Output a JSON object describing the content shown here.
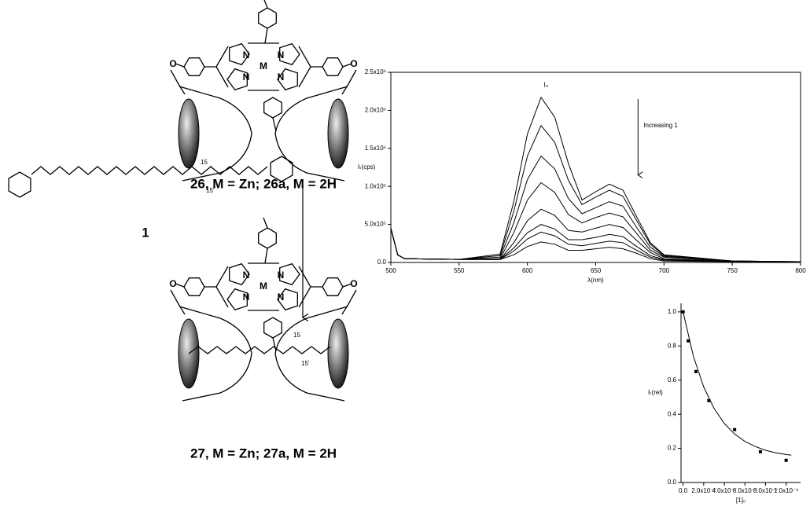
{
  "structures": {
    "top": {
      "caption": "26, M = Zn; 26a, M = 2H",
      "atoms": [
        "O",
        "N",
        "N",
        "M",
        "N",
        "N",
        "O"
      ]
    },
    "carotenoid": {
      "label": "1",
      "locants": [
        "15",
        "15'"
      ]
    },
    "bottom": {
      "caption": "27, M = Zn; 27a, M = 2H",
      "atoms": [
        "O",
        "N",
        "N",
        "M",
        "N",
        "N",
        "O"
      ],
      "locants": [
        "15",
        "15'"
      ]
    }
  },
  "chart_data": [
    {
      "type": "line",
      "x_label": "λ(nm)",
      "y_label": "Iₜ(cps)",
      "annotations": [
        "I₀",
        "Increasing 1"
      ],
      "x": [
        500,
        505,
        510,
        550,
        580,
        590,
        600,
        610,
        620,
        630,
        640,
        650,
        660,
        670,
        680,
        690,
        700,
        750,
        800
      ],
      "xlim": [
        500,
        800
      ],
      "xticks": [
        500,
        550,
        600,
        650,
        700,
        750,
        800
      ],
      "ylim": [
        0,
        2500000
      ],
      "yticks": [
        {
          "value": 0,
          "label": "0.0"
        },
        {
          "value": 500000,
          "label": "5.0x10⁵"
        },
        {
          "value": 1000000,
          "label": "1.0x10⁶"
        },
        {
          "value": 1500000,
          "label": "1.5x10⁶"
        },
        {
          "value": 2000000,
          "label": "2.0x10⁶"
        },
        {
          "value": 2500000,
          "label": "2.5x10⁶"
        }
      ],
      "series": [
        {
          "color": "#000000",
          "values": [
            450000,
            100000,
            50000,
            40000,
            110000,
            800000,
            1690000,
            2170000,
            1910000,
            1300000,
            820000,
            930000,
            1030000,
            950000,
            600000,
            260000,
            100000,
            20000,
            10000
          ]
        },
        {
          "color": "#000000",
          "values": [
            450000,
            100000,
            50000,
            40000,
            90000,
            670000,
            1400000,
            1800000,
            1580000,
            1080000,
            760000,
            860000,
            950000,
            870000,
            550000,
            240000,
            90000,
            20000,
            10000
          ]
        },
        {
          "color": "#000000",
          "values": [
            450000,
            100000,
            50000,
            40000,
            70000,
            520000,
            1090000,
            1400000,
            1230000,
            840000,
            640000,
            720000,
            800000,
            740000,
            460000,
            200000,
            80000,
            20000,
            10000
          ]
        },
        {
          "color": "#000000",
          "values": [
            450000,
            100000,
            50000,
            40000,
            50000,
            390000,
            820000,
            1050000,
            920000,
            630000,
            520000,
            590000,
            650000,
            600000,
            380000,
            160000,
            70000,
            10000,
            10000
          ]
        },
        {
          "color": "#000000",
          "values": [
            450000,
            100000,
            50000,
            40000,
            40000,
            260000,
            550000,
            700000,
            620000,
            420000,
            400000,
            450000,
            500000,
            460000,
            290000,
            130000,
            50000,
            10000,
            10000
          ]
        },
        {
          "color": "#000000",
          "values": [
            450000,
            100000,
            50000,
            40000,
            40000,
            190000,
            390000,
            500000,
            440000,
            300000,
            300000,
            330000,
            370000,
            340000,
            210000,
            90000,
            40000,
            10000,
            10000
          ]
        },
        {
          "color": "#000000",
          "values": [
            450000,
            100000,
            50000,
            40000,
            40000,
            150000,
            310000,
            400000,
            350000,
            240000,
            220000,
            250000,
            280000,
            260000,
            160000,
            70000,
            30000,
            10000,
            10000
          ]
        },
        {
          "color": "#000000",
          "values": [
            450000,
            100000,
            50000,
            40000,
            40000,
            100000,
            210000,
            270000,
            240000,
            160000,
            160000,
            180000,
            200000,
            180000,
            120000,
            50000,
            20000,
            10000,
            10000
          ]
        }
      ]
    },
    {
      "type": "scatter",
      "x_label": "[1]₀",
      "y_label": "Iₜ(rel)",
      "xlim": [
        -2e-08,
        1.14e-06
      ],
      "xticks": [
        {
          "value": 0,
          "label": "0.0"
        },
        {
          "value": 2e-07,
          "label": "2.0x10⁻⁷"
        },
        {
          "value": 4e-07,
          "label": "4.0x10⁻⁷"
        },
        {
          "value": 6e-07,
          "label": "6.0x10⁻⁷"
        },
        {
          "value": 8e-07,
          "label": "8.0x10⁻⁷"
        },
        {
          "value": 1e-06,
          "label": "1.0x10⁻⁶"
        }
      ],
      "ylim": [
        0,
        1.05
      ],
      "yticks": [
        {
          "value": 0,
          "label": "0.0"
        },
        {
          "value": 0.2,
          "label": "0.2"
        },
        {
          "value": 0.4,
          "label": "0.4"
        },
        {
          "value": 0.6,
          "label": "0.6"
        },
        {
          "value": 0.8,
          "label": "0.8"
        },
        {
          "value": 1,
          "label": "1.0"
        }
      ],
      "x": [
        0,
        5e-08,
        1.25e-07,
        2.5e-07,
        5e-07,
        7.5e-07,
        1e-06
      ],
      "values": [
        1.0,
        0.83,
        0.65,
        0.48,
        0.31,
        0.18,
        0.13
      ],
      "color": "#000000",
      "fit": {
        "x": [
          0,
          1e-07,
          2e-07,
          3e-07,
          4e-07,
          5e-07,
          6e-07,
          7e-07,
          8e-07,
          9e-07,
          1e-06,
          1.05e-06
        ],
        "values": [
          1.0,
          0.74,
          0.56,
          0.435,
          0.346,
          0.284,
          0.241,
          0.211,
          0.189,
          0.174,
          0.164,
          0.16
        ]
      }
    }
  ]
}
